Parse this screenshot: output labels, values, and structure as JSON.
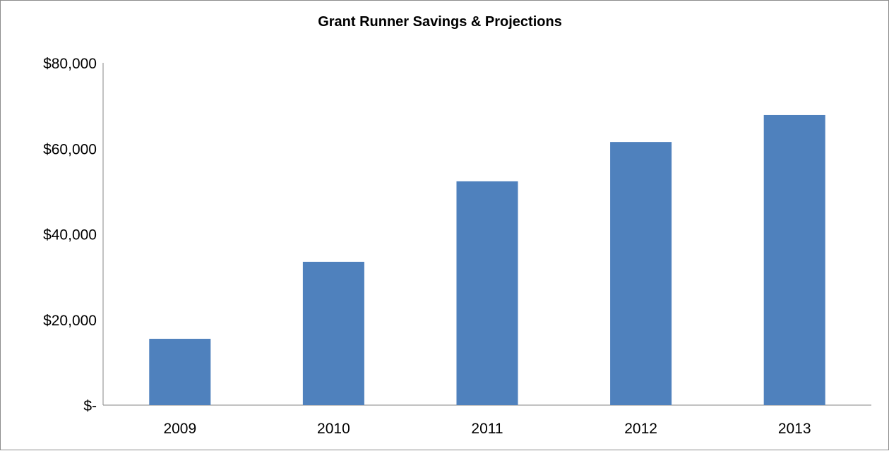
{
  "chart_data": {
    "type": "bar",
    "title": "Grant Runner Savings & Projections",
    "xlabel": "",
    "ylabel": "",
    "categories": [
      "2009",
      "2010",
      "2011",
      "2012",
      "2013"
    ],
    "values": [
      15500,
      33500,
      52300,
      61500,
      67800
    ],
    "ylim": [
      0,
      80000
    ],
    "yticks": [
      0,
      20000,
      40000,
      60000,
      80000
    ],
    "ytick_labels": [
      "$-",
      "$20,000",
      "$40,000",
      "$60,000",
      "$80,000"
    ],
    "bar_color": "#4f81bd",
    "grid": false,
    "legend": "none"
  }
}
